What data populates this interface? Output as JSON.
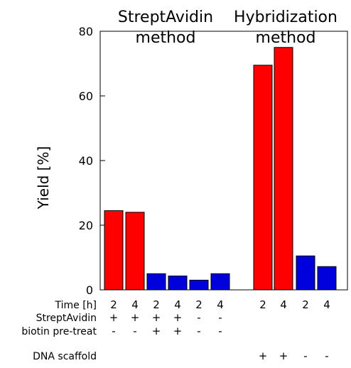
{
  "chart_data": {
    "type": "bar",
    "ylabel": "Yield [%]",
    "ylim": [
      0,
      80
    ],
    "yticks": [
      0,
      20,
      40,
      60,
      80
    ],
    "grid": false,
    "groups": [
      {
        "title_line1": "StreptAvidin",
        "title_line2": "method"
      },
      {
        "title_line1": "Hybridization",
        "title_line2": "method"
      }
    ],
    "row_labels": {
      "time": "Time [h]",
      "streptavidin": "StreptAvidin",
      "biotin": "biotin pre-treat",
      "dna": "DNA scaffold"
    },
    "bars": [
      {
        "value": 24.5,
        "color": "#ff0000",
        "time": "2",
        "streptavidin": "+",
        "biotin": "-",
        "dna": ""
      },
      {
        "value": 24.0,
        "color": "#ff0000",
        "time": "4",
        "streptavidin": "+",
        "biotin": "-",
        "dna": ""
      },
      {
        "value": 5.0,
        "color": "#0000dd",
        "time": "2",
        "streptavidin": "+",
        "biotin": "+",
        "dna": ""
      },
      {
        "value": 4.3,
        "color": "#0000dd",
        "time": "4",
        "streptavidin": "+",
        "biotin": "+",
        "dna": ""
      },
      {
        "value": 3.0,
        "color": "#0000dd",
        "time": "2",
        "streptavidin": "-",
        "biotin": "-",
        "dna": ""
      },
      {
        "value": 5.0,
        "color": "#0000dd",
        "time": "4",
        "streptavidin": "-",
        "biotin": "-",
        "dna": ""
      },
      {
        "value": 69.5,
        "color": "#ff0000",
        "time": "2",
        "streptavidin": "",
        "biotin": "",
        "dna": "+"
      },
      {
        "value": 75.0,
        "color": "#ff0000",
        "time": "4",
        "streptavidin": "",
        "biotin": "",
        "dna": "+"
      },
      {
        "value": 10.5,
        "color": "#0000dd",
        "time": "2",
        "streptavidin": "",
        "biotin": "",
        "dna": "-"
      },
      {
        "value": 7.2,
        "color": "#0000dd",
        "time": "4",
        "streptavidin": "",
        "biotin": "",
        "dna": "-"
      }
    ]
  }
}
